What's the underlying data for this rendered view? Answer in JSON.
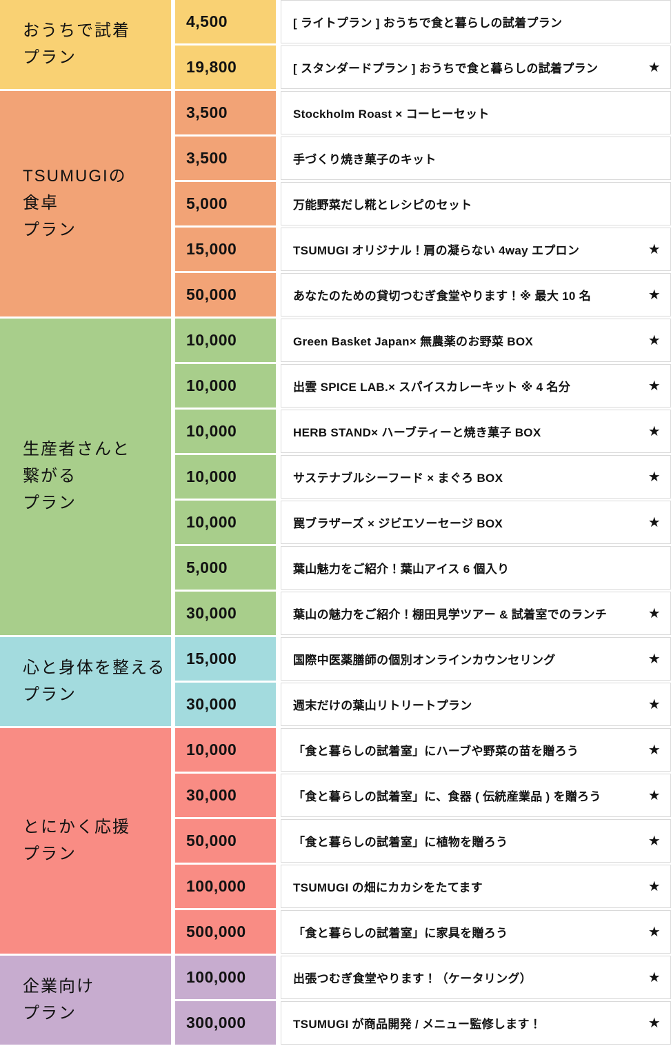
{
  "chart_data": {
    "type": "table",
    "title": "",
    "columns": [
      "plan-category",
      "price-yen",
      "return-item",
      "limited-star"
    ],
    "star_glyph": "★",
    "grid_color": "#D9D9D9",
    "text_color": "#121212",
    "sections": [
      {
        "name_lines": [
          "おうちで試着",
          "プラン"
        ],
        "color": "#F9D173",
        "rows": [
          {
            "price": "4,500",
            "label": "[ ライトプラン ] おうちで食と暮らしの試着プラン",
            "starred": false
          },
          {
            "price": "19,800",
            "label": "[ スタンダードプラン ]  おうちで食と暮らしの試着プラン",
            "starred": true
          }
        ]
      },
      {
        "name_lines": [
          "TSUMUGIの",
          "食卓",
          "プラン"
        ],
        "color": "#F2A376",
        "rows": [
          {
            "price": "3,500",
            "label": "Stockholm Roast ×  コーヒーセット",
            "starred": false
          },
          {
            "price": "3,500",
            "label": "手づくり焼き菓子のキット",
            "starred": false
          },
          {
            "price": "5,000",
            "label": "万能野菜だし糀とレシピのセット",
            "starred": false
          },
          {
            "price": "15,000",
            "label": "TSUMUGI オリジナル！肩の凝らない 4way エプロン",
            "starred": true
          },
          {
            "price": "50,000",
            "label": "あなたのための貸切つむぎ食堂やります！※ 最大 10 名",
            "starred": true
          }
        ]
      },
      {
        "name_lines": [
          "生産者さんと",
          "繋がる",
          "プラン"
        ],
        "color": "#A8CE8B",
        "rows": [
          {
            "price": "10,000",
            "label": "Green Basket Japan× 無農薬のお野菜 BOX",
            "starred": true
          },
          {
            "price": "10,000",
            "label": "出雲 SPICE LAB.× スパイスカレーキット ※ 4 名分",
            "starred": true
          },
          {
            "price": "10,000",
            "label": "HERB STAND× ハーブティーと焼き菓子 BOX",
            "starred": true
          },
          {
            "price": "10,000",
            "label": "サステナブルシーフード × まぐろ BOX",
            "starred": true
          },
          {
            "price": "10,000",
            "label": "罠ブラザーズ × ジビエソーセージ BOX",
            "starred": true
          },
          {
            "price": "5,000",
            "label": "葉山魅力をご紹介！葉山アイス 6 個入り",
            "starred": false
          },
          {
            "price": "30,000",
            "label": "葉山の魅力をご紹介！棚田見学ツアー & 試着室でのランチ",
            "starred": true
          }
        ]
      },
      {
        "name_lines": [
          "心と身体を整える",
          "プラン"
        ],
        "color": "#A3DBDE",
        "rows": [
          {
            "price": "15,000",
            "label": "国際中医薬膳師の個別オンラインカウンセリング",
            "starred": true
          },
          {
            "price": "30,000",
            "label": "週末だけの葉山リトリートプラン",
            "starred": true
          }
        ]
      },
      {
        "name_lines": [
          "とにかく応援",
          "プラン"
        ],
        "color": "#F98C84",
        "rows": [
          {
            "price": "10,000",
            "label": "「食と暮らしの試着室」にハーブや野菜の苗を贈ろう",
            "starred": true
          },
          {
            "price": "30,000",
            "label": "「食と暮らしの試着室」に、食器 ( 伝統産業品 ) を贈ろう",
            "starred": true
          },
          {
            "price": "50,000",
            "label": "「食と暮らしの試着室」に植物を贈ろう",
            "starred": true
          },
          {
            "price": "100,000",
            "label": "TSUMUGI の畑にカカシをたてます",
            "starred": true
          },
          {
            "price": "500,000",
            "label": "「食と暮らしの試着室」に家具を贈ろう",
            "starred": true
          }
        ]
      },
      {
        "name_lines": [
          "企業向け",
          "プラン"
        ],
        "color": "#C7ACCF",
        "rows": [
          {
            "price": "100,000",
            "label": "出張つむぎ食堂やります！（ケータリング）",
            "starred": true
          },
          {
            "price": "300,000",
            "label": "TSUMUGI が商品開発 / メニュー監修します！",
            "starred": true
          }
        ]
      }
    ]
  }
}
